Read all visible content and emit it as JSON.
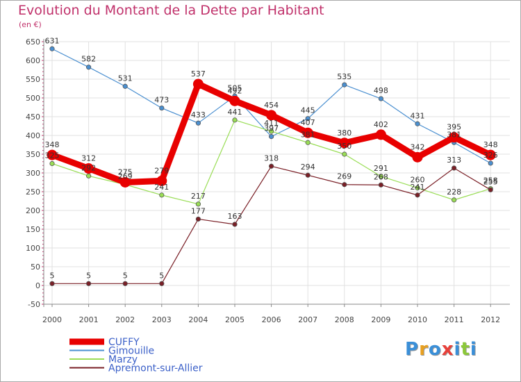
{
  "title": "Evolution du Montant de la Dette par Habitant",
  "unit": "(en €)",
  "logo": {
    "text": "Proxiti",
    "letter_colors": [
      "#3a8fd8",
      "#e8a020",
      "#3a8fd8",
      "#e8403a",
      "#3a8fd8",
      "#8cc83a",
      "#3a8fd8"
    ]
  },
  "chart_data": {
    "type": "line",
    "title": "Evolution du Montant de la Dette par Habitant",
    "ylabel": "(en €)",
    "xlabel": "",
    "ylim": [
      -50,
      650
    ],
    "ytick_step": 50,
    "y_ticks": [
      "-50",
      "0",
      "50",
      "100",
      "150",
      "200",
      "250",
      "300",
      "350",
      "400",
      "450",
      "500",
      "550",
      "600",
      "650"
    ],
    "categories": [
      "2000",
      "2001",
      "2002",
      "2003",
      "2004",
      "2005",
      "2006",
      "2007",
      "2008",
      "2009",
      "2010",
      "2011",
      "2012"
    ],
    "grid": true,
    "legend_position": "bottom-left",
    "series": [
      {
        "name": "CUFFY",
        "color": "#e80000",
        "emphasis": true,
        "values": [
          348,
          312,
          275,
          279,
          537,
          492,
          454,
          407,
          380,
          402,
          342,
          395,
          348
        ]
      },
      {
        "name": "Gimouille",
        "color": "#4a8fd0",
        "emphasis": false,
        "values": [
          631,
          582,
          531,
          473,
          433,
          505,
          397,
          445,
          535,
          498,
          431,
          381,
          326
        ]
      },
      {
        "name": "Marzy",
        "color": "#99dd55",
        "emphasis": false,
        "values": [
          325,
          292,
          269,
          241,
          217,
          441,
          411,
          381,
          350,
          291,
          260,
          228,
          258
        ]
      },
      {
        "name": "Apremont-sur-Allier",
        "color": "#7a1f26",
        "emphasis": false,
        "values": [
          5,
          5,
          5,
          5,
          177,
          163,
          318,
          294,
          269,
          268,
          241,
          313,
          255
        ]
      }
    ]
  }
}
